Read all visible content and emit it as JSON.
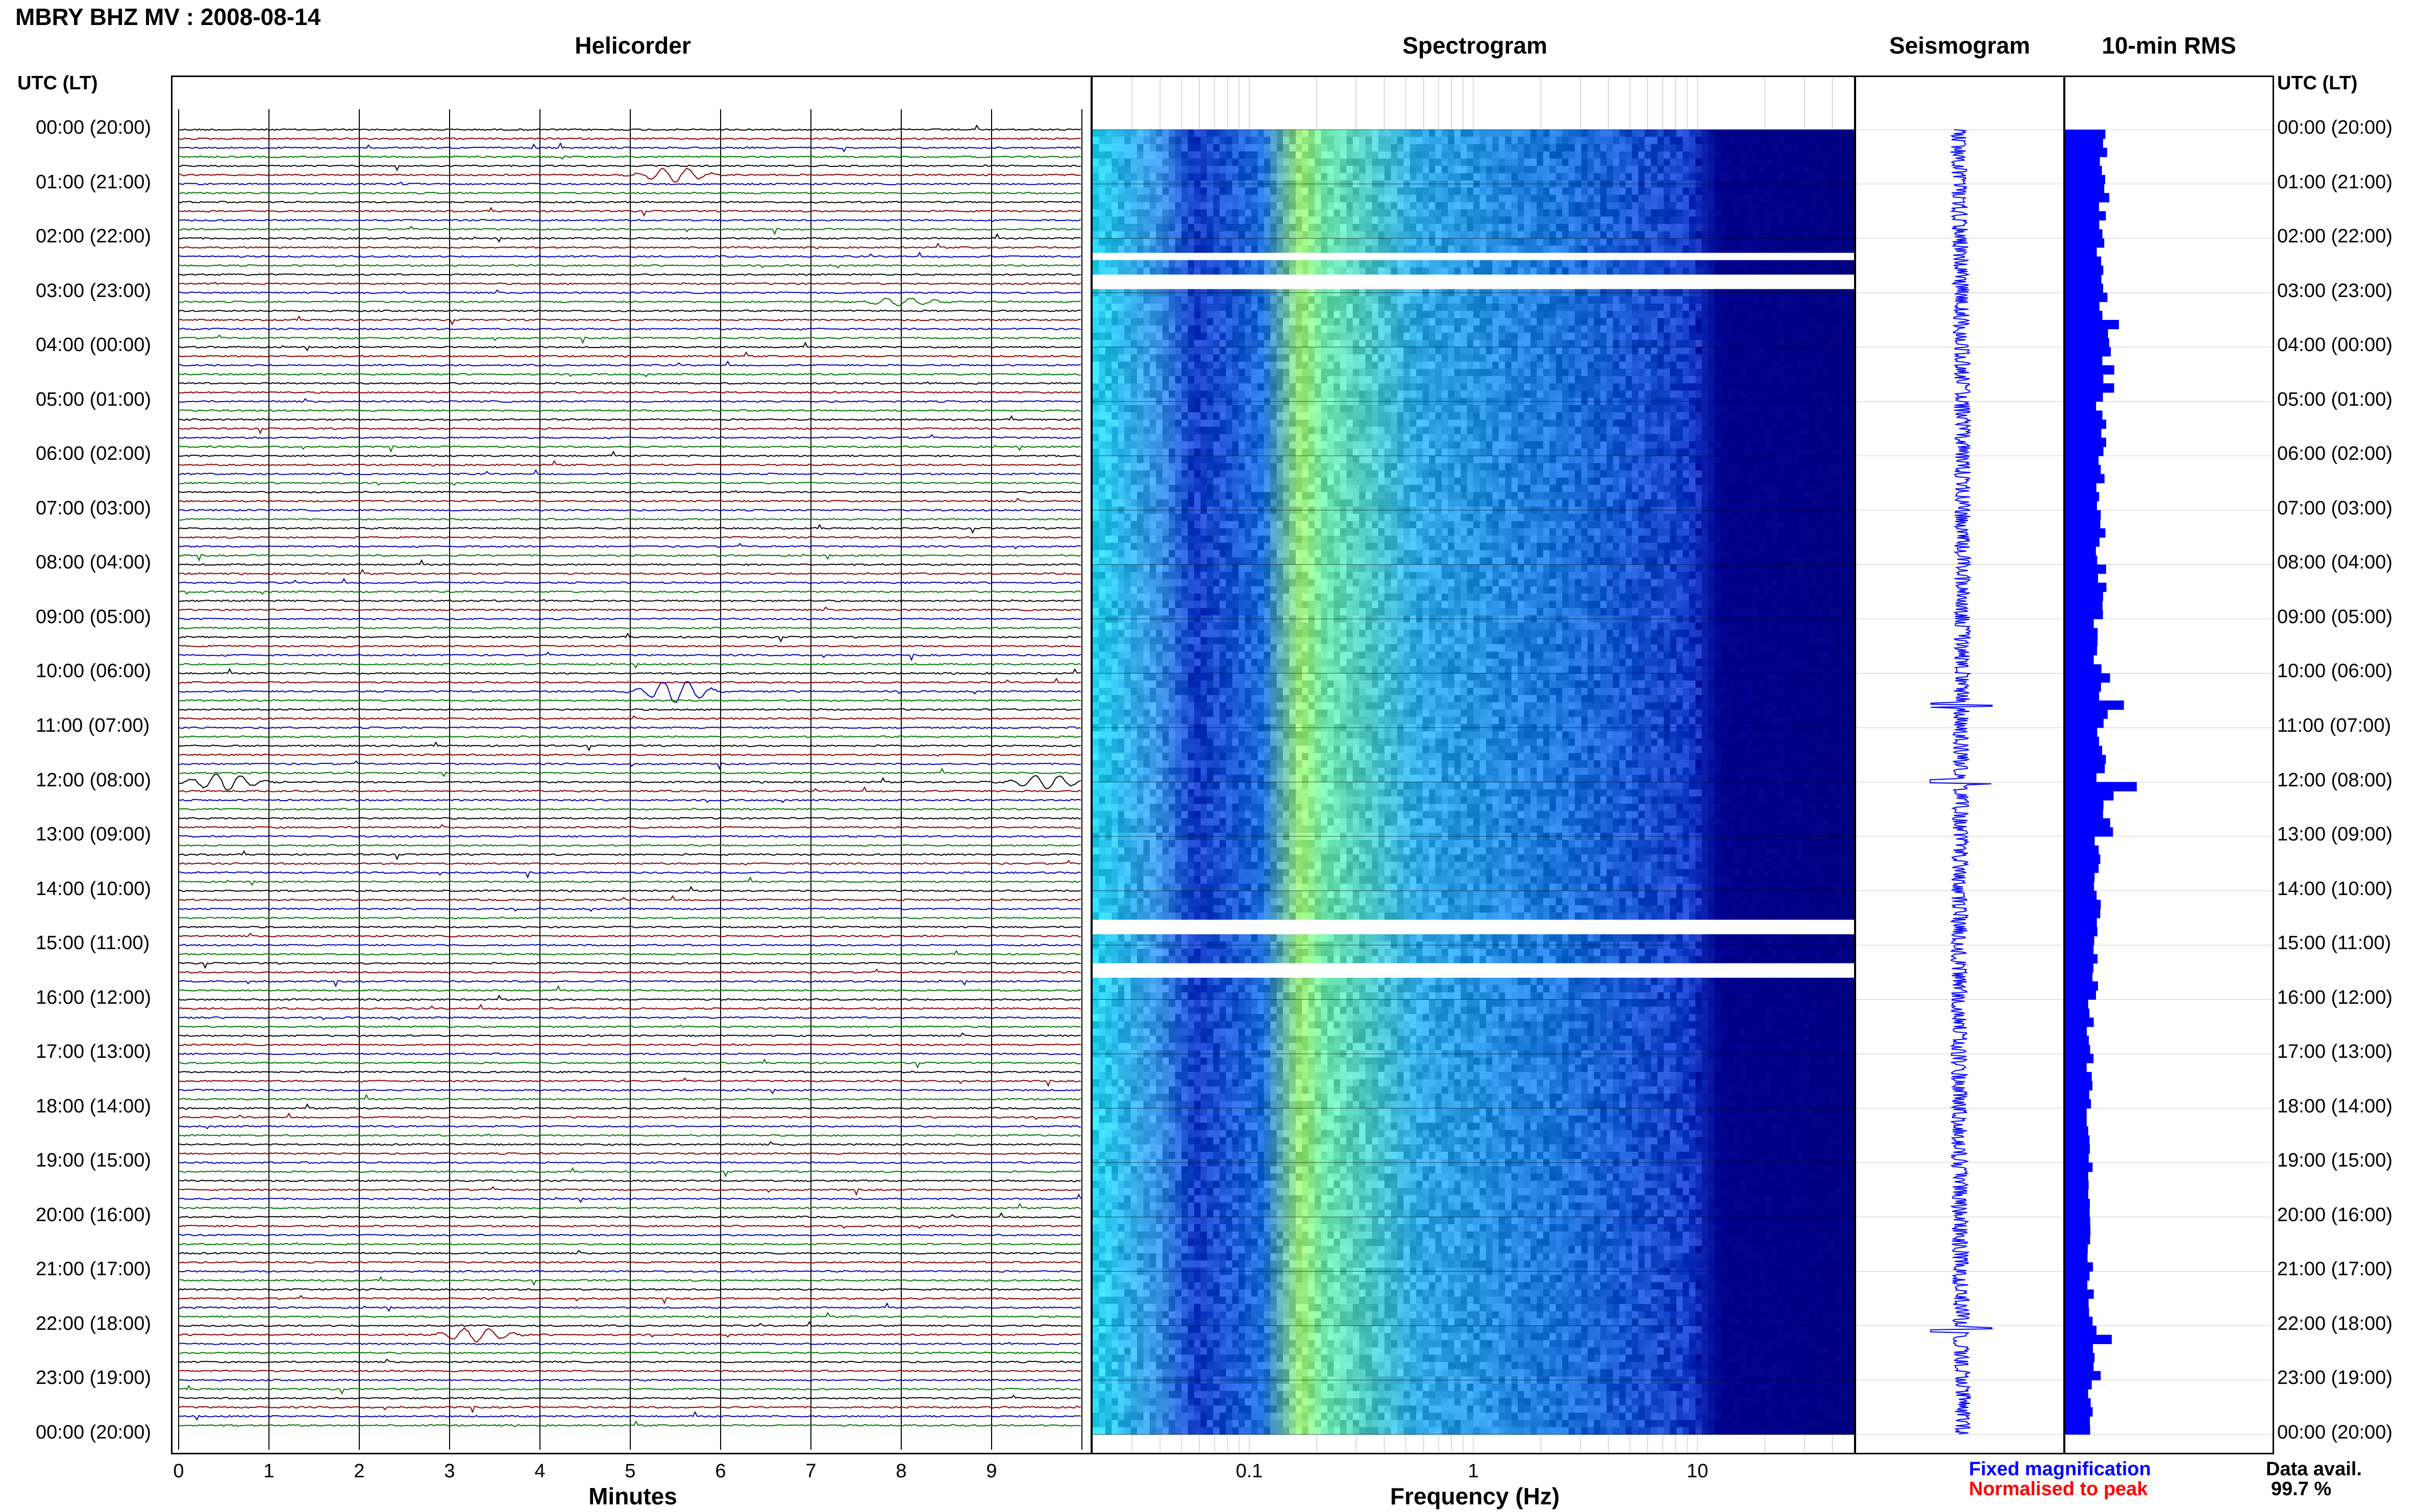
{
  "title": "MBRY BHZ MV : 2008-08-14",
  "panels": {
    "helicorder": "Helicorder",
    "spectrogram": "Spectrogram",
    "seismogram": "Seismogram",
    "rms": "10-min RMS"
  },
  "axis_header": "UTC (LT)",
  "hour_labels": [
    "00:00 (20:00)",
    "01:00 (21:00)",
    "02:00 (22:00)",
    "03:00 (23:00)",
    "04:00 (00:00)",
    "05:00 (01:00)",
    "06:00 (02:00)",
    "07:00 (03:00)",
    "08:00 (04:00)",
    "09:00 (05:00)",
    "10:00 (06:00)",
    "11:00 (07:00)",
    "12:00 (08:00)",
    "13:00 (09:00)",
    "14:00 (10:00)",
    "15:00 (11:00)",
    "16:00 (12:00)",
    "17:00 (13:00)",
    "18:00 (14:00)",
    "19:00 (15:00)",
    "20:00 (16:00)",
    "21:00 (17:00)",
    "22:00 (18:00)",
    "23:00 (19:00)",
    "00:00 (20:00)"
  ],
  "minutes_ticks": [
    "0",
    "1",
    "2",
    "3",
    "4",
    "5",
    "6",
    "7",
    "8",
    "9"
  ],
  "minutes_label": "Minutes",
  "freq_ticks": [
    "0.1",
    "1",
    "10"
  ],
  "freq_label": "Frequency (Hz)",
  "legend": {
    "fixed": "Fixed magnification",
    "normalised": "Normalised to peak",
    "fixed_color": "#0000ff",
    "normalised_color": "#ff0000"
  },
  "data_avail": {
    "label": "Data avail.",
    "value": "99.7 %"
  },
  "colors": {
    "trace_cycle": [
      "#000000",
      "#8b0000",
      "#0000b4",
      "#007800"
    ],
    "rms_bar": "#0000ff",
    "seismogram": "#0000ff",
    "spectrogram_low": "#00008b",
    "spectrogram_high": "#c8ff50"
  },
  "chart_data": [
    {
      "type": "line",
      "title": "Helicorder",
      "xlabel": "Minutes",
      "xlim": [
        0,
        10
      ],
      "ylabel": "UTC (LT)",
      "rows_per_hour": 6,
      "events": [
        {
          "time": "00:50",
          "minute": 5.5,
          "amp": 1.0
        },
        {
          "time": "03:10",
          "minute": 8.0,
          "amp": 0.6
        },
        {
          "time": "10:20",
          "minute": 5.5,
          "amp": 1.6
        },
        {
          "time": "12:00",
          "minute": 0.5,
          "amp": 1.2
        },
        {
          "time": "12:00",
          "minute": 9.6,
          "amp": 1.0
        },
        {
          "time": "22:10",
          "minute": 3.3,
          "amp": 1.0
        }
      ]
    },
    {
      "type": "heatmap",
      "title": "Spectrogram",
      "xlabel": "Frequency (Hz)",
      "xscale": "log",
      "xlim": [
        0.02,
        50
      ],
      "peak_frequency_hz": 0.25,
      "gaps_utc": [
        "02:15",
        "02:45",
        "14:35",
        "15:25"
      ]
    },
    {
      "type": "line",
      "title": "Seismogram",
      "spikes_utc": [
        "10:35",
        "12:00",
        "22:05"
      ]
    },
    {
      "type": "bar",
      "title": "10-min RMS",
      "categories_utc_hour": [
        "00",
        "01",
        "02",
        "03",
        "04",
        "05",
        "06",
        "07",
        "08",
        "09",
        "10",
        "11",
        "12",
        "13",
        "14",
        "15",
        "16",
        "17",
        "18",
        "19",
        "20",
        "21",
        "22",
        "23"
      ],
      "values": [
        0.55,
        0.55,
        0.5,
        0.55,
        0.6,
        0.5,
        0.5,
        0.5,
        0.5,
        0.45,
        0.55,
        0.5,
        0.6,
        0.45,
        0.45,
        0.4,
        0.35,
        0.35,
        0.35,
        0.35,
        0.35,
        0.35,
        0.45,
        0.35
      ],
      "peaks": [
        {
          "time": "10:30",
          "value": 0.82
        },
        {
          "time": "12:00",
          "value": 1.0
        },
        {
          "time": "22:10",
          "value": 0.65
        },
        {
          "time": "03:30",
          "value": 0.75
        }
      ]
    }
  ]
}
